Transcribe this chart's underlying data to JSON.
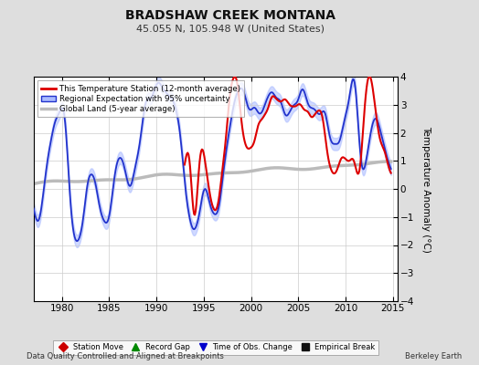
{
  "title": "BRADSHAW CREEK MONTANA",
  "subtitle": "45.055 N, 105.948 W (United States)",
  "ylabel": "Temperature Anomaly (°C)",
  "footer_left": "Data Quality Controlled and Aligned at Breakpoints",
  "footer_right": "Berkeley Earth",
  "xlim": [
    1977.0,
    2015.5
  ],
  "ylim": [
    -4,
    4
  ],
  "xticks": [
    1980,
    1985,
    1990,
    1995,
    2000,
    2005,
    2010,
    2015
  ],
  "yticks": [
    -4,
    -3,
    -2,
    -1,
    0,
    1,
    2,
    3,
    4
  ],
  "bg_color": "#dedede",
  "plot_bg_color": "#ffffff",
  "legend1_labels": [
    "This Temperature Station (12-month average)",
    "Regional Expectation with 95% uncertainty",
    "Global Land (5-year average)"
  ],
  "legend2_labels": [
    "Station Move",
    "Record Gap",
    "Time of Obs. Change",
    "Empirical Break"
  ],
  "legend2_colors": [
    "#cc0000",
    "#008800",
    "#0000cc",
    "#111111"
  ],
  "legend2_markers": [
    "D",
    "^",
    "v",
    "s"
  ],
  "red_line_color": "#dd0000",
  "blue_line_color": "#2233cc",
  "blue_fill_color": "#aabbff",
  "gray_line_color": "#bbbbbb",
  "grid_color": "#cccccc"
}
